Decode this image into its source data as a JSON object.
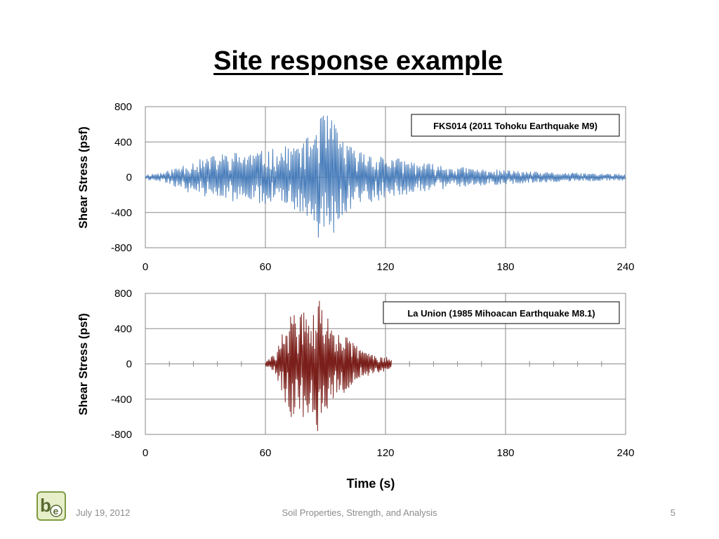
{
  "slide": {
    "title": "Site response example",
    "footer_date": "July 19, 2012",
    "footer_center": "Soil Properties, Strength, and Analysis",
    "page_number": "5",
    "logo_text": "be",
    "x_axis_title": "Time (s)"
  },
  "chart_data": [
    {
      "type": "line",
      "legend": "FKS014 (2011 Tohoku Earthquake M9)",
      "ylabel": "Shear Stress (psf)",
      "xlabel": "",
      "xlim": [
        0,
        240
      ],
      "ylim": [
        -800,
        800
      ],
      "xticks": [
        "0",
        "60",
        "120",
        "180",
        "240"
      ],
      "yticks": [
        "800",
        "400",
        "0",
        "-400",
        "-800"
      ],
      "grid": true,
      "color": "#4a7ebb",
      "series": [
        {
          "x": [
            0,
            10,
            20,
            30,
            40,
            50,
            60,
            70,
            80,
            85,
            88,
            90,
            92,
            95,
            100,
            105,
            110,
            120,
            130,
            140,
            150,
            160,
            170,
            180,
            190,
            200,
            210,
            220,
            230,
            240
          ],
          "y": [
            30,
            60,
            160,
            220,
            280,
            290,
            300,
            350,
            420,
            600,
            780,
            640,
            760,
            580,
            420,
            300,
            300,
            240,
            200,
            160,
            130,
            110,
            90,
            80,
            65,
            55,
            50,
            45,
            40,
            35
          ]
        }
      ]
    },
    {
      "type": "line",
      "legend": "La Union (1985 Mihoacan Earthquake M8.1)",
      "ylabel": "Shear Stress (psf)",
      "xlabel": "Time (s)",
      "xlim": [
        0,
        240
      ],
      "ylim": [
        -800,
        800
      ],
      "xticks": [
        "0",
        "60",
        "120",
        "180",
        "240"
      ],
      "yticks": [
        "800",
        "400",
        "0",
        "-400",
        "-800"
      ],
      "grid": true,
      "color": "#7b1f1a",
      "series": [
        {
          "x": [
            60,
            65,
            70,
            73,
            76,
            80,
            84,
            86,
            90,
            95,
            100,
            105,
            110,
            115,
            120,
            123
          ],
          "y": [
            20,
            120,
            450,
            620,
            520,
            650,
            560,
            780,
            560,
            450,
            320,
            220,
            150,
            110,
            80,
            60
          ]
        }
      ]
    }
  ]
}
